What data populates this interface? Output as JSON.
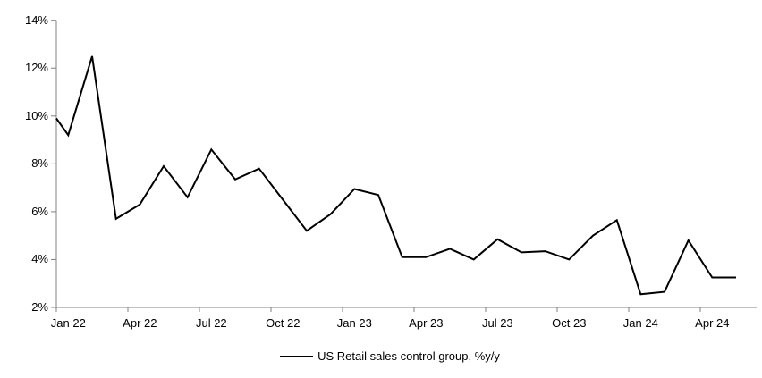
{
  "chart_data": {
    "type": "line",
    "x": [
      "Jan 22",
      "Feb 22",
      "Mar 22",
      "Apr 22",
      "May 22",
      "Jun 22",
      "Jul 22",
      "Aug 22",
      "Sep 22",
      "Oct 22",
      "Nov 22",
      "Dec 22",
      "Jan 23",
      "Feb 23",
      "Mar 23",
      "Apr 23",
      "May 23",
      "Jun 23",
      "Jul 23",
      "Aug 23",
      "Sep 23",
      "Oct 23",
      "Nov 23",
      "Dec 23",
      "Jan 24",
      "Feb 24",
      "Mar 24",
      "Apr 24",
      "May 24"
    ],
    "series": [
      {
        "name": "US Retail sales control group, %y/y",
        "values": [
          9.2,
          12.5,
          5.7,
          6.3,
          7.9,
          6.6,
          8.6,
          7.35,
          7.8,
          6.5,
          5.2,
          5.9,
          6.95,
          6.7,
          4.1,
          4.1,
          4.45,
          4.0,
          4.85,
          4.3,
          4.35,
          4.0,
          5.0,
          5.65,
          2.55,
          2.65,
          4.8,
          3.25,
          3.25
        ],
        "clipped_start_value": 9.9
      }
    ],
    "ylim": [
      2,
      14
    ],
    "ytick_step": 2,
    "ytick_labels": [
      "2%",
      "4%",
      "6%",
      "8%",
      "10%",
      "12%",
      "14%"
    ],
    "xtick_labels_shown": [
      "Jan 22",
      "Apr 22",
      "Jul 22",
      "Oct 22",
      "Jan 23",
      "Apr 23",
      "Jul 23",
      "Oct 23",
      "Jan 24",
      "Apr 24"
    ],
    "xtick_label_interval_months": 3,
    "grid": false,
    "legend_position": "bottom-center",
    "line_color": "#000000",
    "axis_color": "#808080",
    "text_color": "#000000"
  }
}
